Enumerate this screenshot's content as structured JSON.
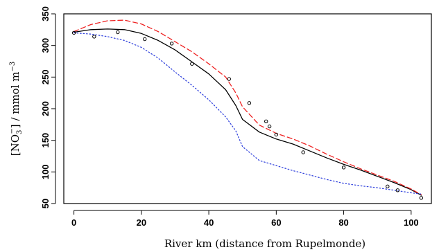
{
  "chart_data": {
    "type": "line",
    "xlabel": "River km (distance from Rupelmonde)",
    "ylabel": {
      "open": "[NO",
      "subscript": "3",
      "superscript": "−",
      "close": "] / mmol m",
      "exponent": "−3"
    },
    "xlim": [
      -3,
      106
    ],
    "ylim": [
      50,
      350
    ],
    "xticks": [
      0,
      20,
      40,
      60,
      80,
      100
    ],
    "yticks": [
      50,
      100,
      150,
      200,
      250,
      300,
      350
    ],
    "grid": false,
    "series": [
      {
        "style": "solid",
        "color": "#000000",
        "x": [
          0,
          5,
          10,
          15,
          20,
          25,
          30,
          35,
          40,
          45,
          48,
          50,
          55,
          60,
          65,
          70,
          75,
          80,
          85,
          90,
          95,
          100,
          103
        ],
        "y": [
          321,
          325,
          326,
          325,
          319,
          308,
          293,
          274,
          255,
          230,
          205,
          183,
          163,
          152,
          144,
          133,
          122,
          112,
          103,
          93,
          83,
          72,
          63
        ]
      },
      {
        "style": "dashed",
        "color": "#ee2222",
        "x": [
          0,
          5,
          10,
          15,
          20,
          25,
          30,
          35,
          40,
          45,
          48,
          50,
          55,
          60,
          65,
          70,
          75,
          80,
          85,
          90,
          95,
          100,
          103
        ],
        "y": [
          322,
          333,
          339,
          340,
          334,
          322,
          306,
          290,
          271,
          250,
          225,
          203,
          174,
          161,
          152,
          141,
          128,
          116,
          105,
          95,
          85,
          73,
          64
        ]
      },
      {
        "style": "dotted",
        "color": "#3344dd",
        "x": [
          0,
          5,
          10,
          15,
          20,
          25,
          30,
          35,
          40,
          45,
          48,
          50,
          55,
          60,
          65,
          70,
          75,
          80,
          85,
          90,
          95,
          100,
          103
        ],
        "y": [
          320,
          318,
          314,
          308,
          297,
          280,
          258,
          237,
          214,
          187,
          165,
          140,
          118,
          110,
          102,
          95,
          88,
          82,
          78,
          75,
          71,
          67,
          65
        ]
      }
    ],
    "points": {
      "x": [
        0,
        6,
        13,
        21,
        29,
        35,
        46,
        52,
        57,
        58,
        60,
        68,
        80,
        93,
        96,
        103
      ],
      "y": [
        320,
        314,
        321,
        310,
        303,
        271,
        247,
        209,
        180,
        172,
        159,
        131,
        107,
        77,
        71,
        59
      ]
    }
  }
}
